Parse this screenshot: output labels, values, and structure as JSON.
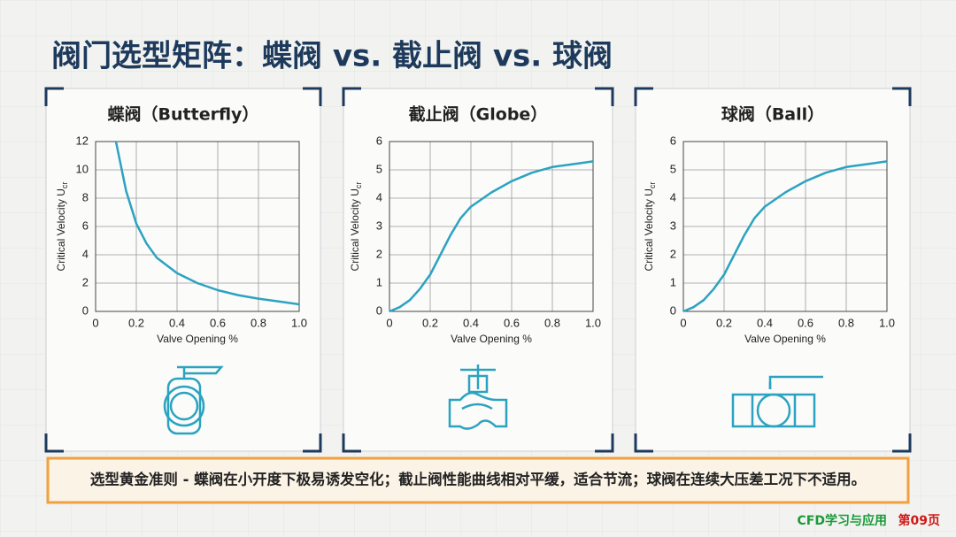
{
  "slide": {
    "title": "阀门选型矩阵：蝶阀 vs. 截止阀 vs. 球阀",
    "note": "选型黄金准则 - 蝶阀在小开度下极易诱发空化；截止阀性能曲线相对平缓，适合节流；球阀在连续大压差工况下不适用。",
    "brand": "CFD学习与应用",
    "page": "第09页"
  },
  "chart_data": [
    {
      "type": "line",
      "title": "蝶阀（Butterfly）",
      "xlabel": "Valve Opening %",
      "ylabel": "Critical Velocity U",
      "ylabel_sub": "cr",
      "x": [
        0.1,
        0.15,
        0.2,
        0.25,
        0.3,
        0.4,
        0.5,
        0.6,
        0.7,
        0.8,
        0.9,
        1.0
      ],
      "values": [
        12,
        8.5,
        6.2,
        4.8,
        3.8,
        2.7,
        2.0,
        1.5,
        1.15,
        0.9,
        0.7,
        0.5
      ],
      "color": "#2ba3c0",
      "xlim": [
        0,
        1
      ],
      "ylim": [
        0,
        12
      ],
      "xticks": [
        0,
        0.2,
        0.4,
        0.6,
        0.8,
        {
          "value": 1,
          "label": "1.0"
        }
      ],
      "yticks": [
        0,
        2,
        4,
        6,
        8,
        10,
        12
      ],
      "grid": true
    },
    {
      "type": "line",
      "title": "截止阀（Globe）",
      "xlabel": "Valve Opening %",
      "ylabel": "Critical Velocity U",
      "ylabel_sub": "cr",
      "x": [
        0,
        0.05,
        0.1,
        0.15,
        0.2,
        0.25,
        0.3,
        0.35,
        0.4,
        0.5,
        0.6,
        0.7,
        0.8,
        0.9,
        1.0
      ],
      "values": [
        0,
        0.15,
        0.4,
        0.8,
        1.3,
        2.0,
        2.7,
        3.3,
        3.7,
        4.2,
        4.6,
        4.9,
        5.1,
        5.2,
        5.3
      ],
      "color": "#2ba3c0",
      "xlim": [
        0,
        1
      ],
      "ylim": [
        0,
        6
      ],
      "xticks": [
        0,
        0.2,
        0.4,
        0.6,
        0.8,
        {
          "value": 1,
          "label": "1.0"
        }
      ],
      "yticks": [
        0,
        1,
        2,
        3,
        4,
        5,
        6
      ],
      "grid": true
    },
    {
      "type": "line",
      "title": "球阀（Ball）",
      "xlabel": "Valve Opening %",
      "ylabel": "Critical Velocity U",
      "ylabel_sub": "cr",
      "x": [
        0,
        0.05,
        0.1,
        0.15,
        0.2,
        0.25,
        0.3,
        0.35,
        0.4,
        0.5,
        0.6,
        0.7,
        0.8,
        0.9,
        1.0
      ],
      "values": [
        0,
        0.15,
        0.4,
        0.8,
        1.3,
        2.0,
        2.7,
        3.3,
        3.7,
        4.2,
        4.6,
        4.9,
        5.1,
        5.2,
        5.3
      ],
      "color": "#2ba3c0",
      "xlim": [
        0,
        1
      ],
      "ylim": [
        0,
        6
      ],
      "xticks": [
        0,
        0.2,
        0.4,
        0.6,
        0.8,
        {
          "value": 1,
          "label": "1.0"
        }
      ],
      "yticks": [
        0,
        1,
        2,
        3,
        4,
        5,
        6
      ],
      "grid": true
    }
  ]
}
